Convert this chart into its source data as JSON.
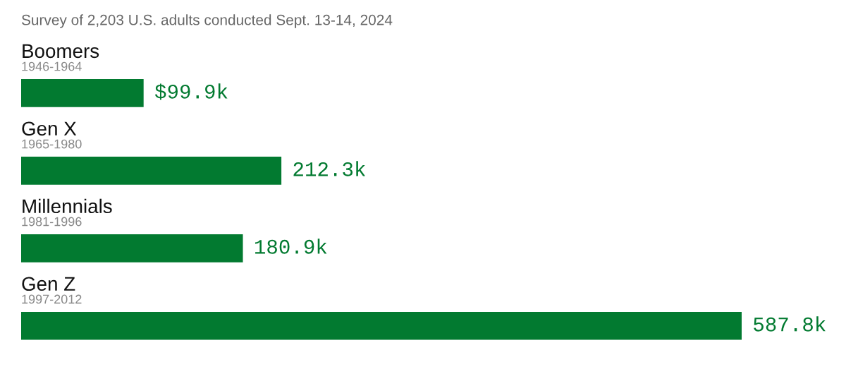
{
  "chart_data": {
    "type": "bar",
    "orientation": "horizontal",
    "title": "Survey of 2,203 U.S. adults conducted Sept. 13-14, 2024",
    "categories": [
      "Boomers\n1946-1964",
      "Gen X\n1965-1980",
      "Millennials\n1981-1996",
      "Gen Z\n1997-2012"
    ],
    "values": [
      99.9,
      212.3,
      180.9,
      587.8
    ],
    "value_labels": [
      "$99.9k",
      "212.3k",
      "180.9k",
      "587.8k"
    ],
    "color": "#027a30"
  }
}
